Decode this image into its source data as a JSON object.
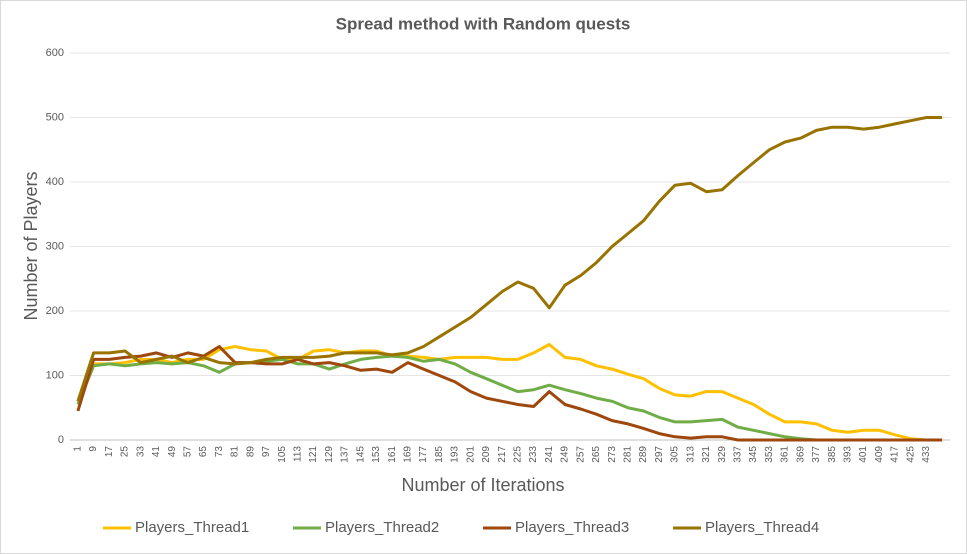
{
  "chart_data": {
    "type": "line",
    "title": "Spread method with Random quests",
    "x_label": "Number of Iterations",
    "y_label": "Number of Players",
    "categories": [
      "1",
      "9",
      "17",
      "25",
      "33",
      "41",
      "49",
      "57",
      "65",
      "73",
      "81",
      "89",
      "97",
      "105",
      "113",
      "121",
      "129",
      "137",
      "145",
      "153",
      "161",
      "169",
      "177",
      "185",
      "193",
      "201",
      "209",
      "217",
      "225",
      "233",
      "241",
      "249",
      "257",
      "265",
      "273",
      "281",
      "289",
      "297",
      "305",
      "313",
      "321",
      "329",
      "337",
      "345",
      "353",
      "361",
      "369",
      "377",
      "385",
      "393",
      "401",
      "409",
      "417",
      "425",
      "433",
      null
    ],
    "series": [
      {
        "name": "Players_Thread1",
        "color": "#ffc000",
        "values": [
          60,
          118,
          118,
          120,
          125,
          125,
          120,
          125,
          125,
          140,
          145,
          140,
          138,
          125,
          125,
          138,
          140,
          135,
          138,
          138,
          130,
          130,
          128,
          125,
          128,
          128,
          128,
          125,
          125,
          135,
          148,
          128,
          125,
          115,
          110,
          102,
          95,
          80,
          70,
          68,
          75,
          75,
          65,
          55,
          40,
          28,
          28,
          25,
          15,
          12,
          15,
          15,
          8,
          2,
          0,
          0
        ]
      },
      {
        "name": "Players_Thread2",
        "color": "#70ad47",
        "values": [
          55,
          115,
          118,
          115,
          118,
          120,
          118,
          120,
          115,
          105,
          118,
          120,
          122,
          125,
          118,
          118,
          110,
          118,
          125,
          128,
          130,
          128,
          122,
          125,
          118,
          105,
          95,
          85,
          75,
          78,
          85,
          78,
          72,
          65,
          60,
          50,
          45,
          35,
          28,
          28,
          30,
          32,
          20,
          15,
          10,
          5,
          2,
          0,
          0,
          0,
          0,
          0,
          0,
          0,
          0,
          0
        ]
      },
      {
        "name": "Players_Thread3",
        "color": "#9e480e",
        "values": [
          45,
          125,
          125,
          128,
          130,
          135,
          128,
          135,
          130,
          145,
          120,
          120,
          118,
          118,
          125,
          118,
          120,
          115,
          108,
          110,
          105,
          120,
          110,
          100,
          90,
          75,
          65,
          60,
          55,
          52,
          75,
          55,
          48,
          40,
          30,
          25,
          18,
          10,
          5,
          3,
          5,
          5,
          0,
          0,
          0,
          0,
          0,
          0,
          0,
          0,
          0,
          0,
          0,
          0,
          0,
          0
        ]
      },
      {
        "name": "Players_Thread4",
        "color": "#997300",
        "values": [
          60,
          135,
          135,
          138,
          120,
          125,
          130,
          120,
          128,
          120,
          118,
          120,
          125,
          128,
          128,
          128,
          130,
          135,
          135,
          135,
          132,
          135,
          145,
          160,
          175,
          190,
          210,
          230,
          245,
          235,
          205,
          240,
          255,
          275,
          300,
          320,
          340,
          370,
          395,
          398,
          385,
          388,
          410,
          430,
          450,
          462,
          468,
          480,
          485,
          485,
          482,
          485,
          490,
          495,
          500,
          500
        ]
      }
    ],
    "ylim": [
      0,
      600
    ],
    "yticks": [
      0,
      100,
      200,
      300,
      400,
      500,
      600
    ],
    "grid": true,
    "legend": "bottom"
  }
}
